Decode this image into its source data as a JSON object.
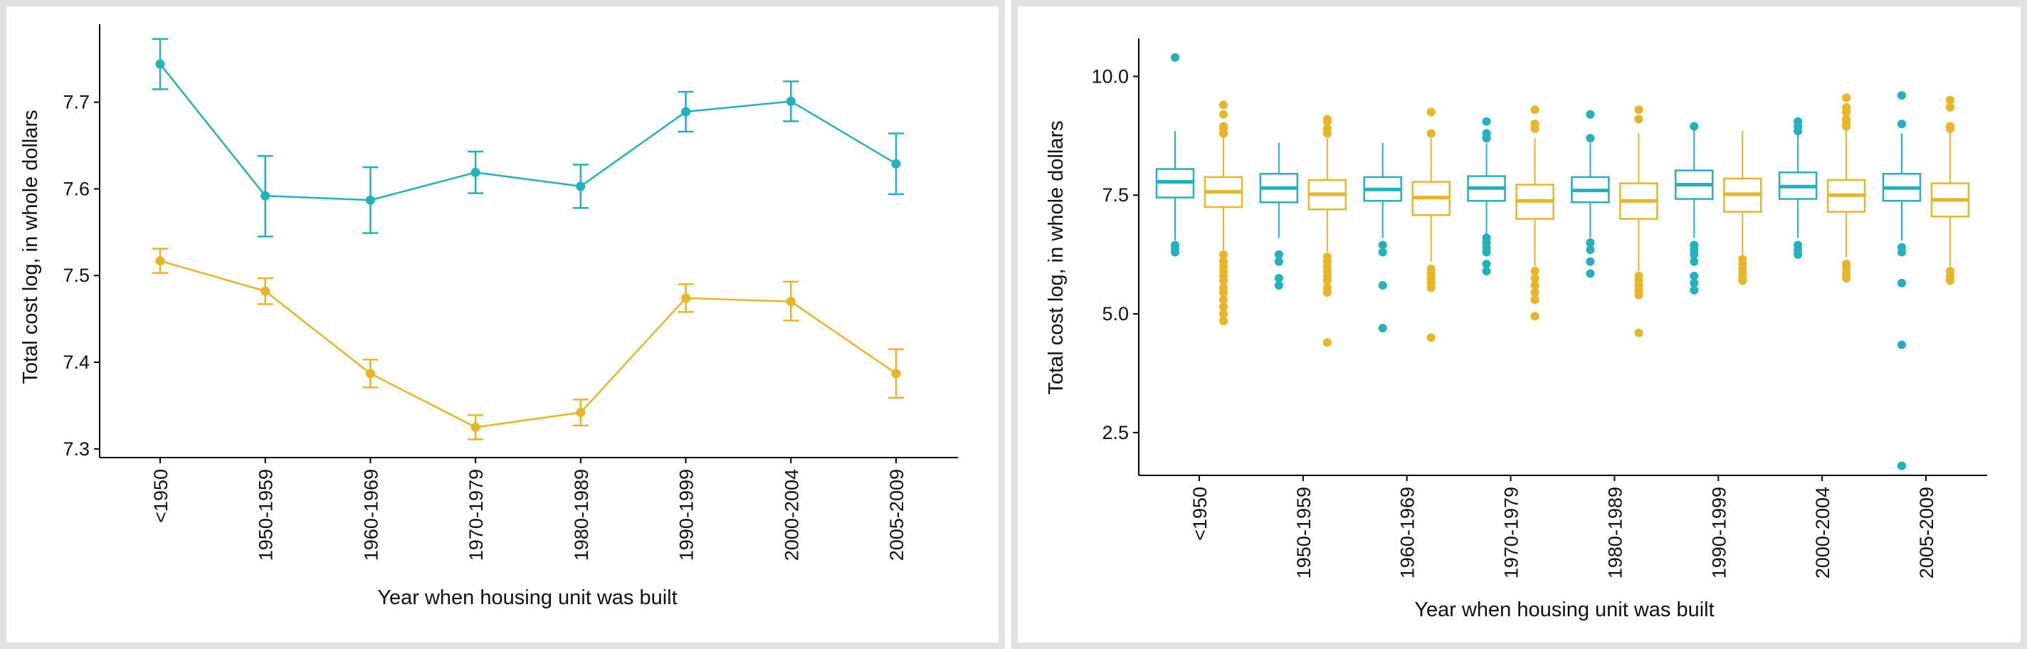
{
  "colors": {
    "teal": "#1fb2c0",
    "gold": "#ebb421",
    "axis": "#000000",
    "border": "#e1e1e1"
  },
  "chart_data": [
    {
      "type": "line",
      "categories": [
        "<1950",
        "1950-1959",
        "1960-1969",
        "1970-1979",
        "1980-1989",
        "1990-1999",
        "2000-2004",
        "2005-2009"
      ],
      "xlabel": "Year when housing unit was built",
      "ylabel": "Total cost log, in whole dollars",
      "ylim": [
        7.29,
        7.79
      ],
      "yticks": [
        7.3,
        7.4,
        7.5,
        7.6,
        7.7
      ],
      "ytick_labels": [
        "7.3",
        "7.4",
        "7.5",
        "7.6",
        "7.7"
      ],
      "error_bars": true,
      "grid": false,
      "legend": "none",
      "series": [
        {
          "color": "#1fb2c0",
          "values": [
            7.744,
            7.592,
            7.587,
            7.619,
            7.603,
            7.689,
            7.701,
            7.629
          ],
          "lower": [
            7.715,
            7.545,
            7.549,
            7.595,
            7.578,
            7.666,
            7.678,
            7.594
          ],
          "upper": [
            7.773,
            7.638,
            7.625,
            7.643,
            7.628,
            7.712,
            7.724,
            7.664
          ]
        },
        {
          "color": "#ebb421",
          "values": [
            7.517,
            7.482,
            7.387,
            7.325,
            7.342,
            7.474,
            7.47,
            7.387
          ],
          "lower": [
            7.503,
            7.467,
            7.371,
            7.311,
            7.327,
            7.458,
            7.448,
            7.359
          ],
          "upper": [
            7.531,
            7.497,
            7.403,
            7.339,
            7.357,
            7.49,
            7.493,
            7.415
          ]
        }
      ]
    },
    {
      "type": "box",
      "categories": [
        "<1950",
        "1950-1959",
        "1960-1969",
        "1970-1979",
        "1980-1989",
        "1990-1999",
        "2000-2004",
        "2005-2009"
      ],
      "xlabel": "Year when housing unit was built",
      "ylabel": "Total cost log, in whole dollars",
      "ylim": [
        1.6,
        10.8
      ],
      "yticks": [
        2.5,
        5.0,
        7.5,
        10.0
      ],
      "ytick_labels": [
        "2.5",
        "5.0",
        "7.5",
        "10.0"
      ],
      "grid": false,
      "legend": "none",
      "series": [
        {
          "color": "#1fb2c0",
          "boxes": [
            {
              "q1": 7.45,
              "median": 7.78,
              "q3": 8.05,
              "lower": 6.55,
              "upper": 8.85,
              "outliers": [
                10.4,
                6.45,
                6.38,
                6.3
              ]
            },
            {
              "q1": 7.35,
              "median": 7.65,
              "q3": 7.95,
              "lower": 6.6,
              "upper": 8.6,
              "outliers": [
                6.25,
                6.1,
                5.75,
                5.6
              ]
            },
            {
              "q1": 7.38,
              "median": 7.62,
              "q3": 7.88,
              "lower": 6.6,
              "upper": 8.6,
              "outliers": [
                6.45,
                6.3,
                5.6,
                4.7
              ]
            },
            {
              "q1": 7.38,
              "median": 7.65,
              "q3": 7.9,
              "lower": 6.6,
              "upper": 8.6,
              "outliers": [
                9.05,
                8.8,
                8.7,
                6.6,
                6.5,
                6.4,
                6.3,
                6.05,
                5.9
              ]
            },
            {
              "q1": 7.35,
              "median": 7.6,
              "q3": 7.88,
              "lower": 6.6,
              "upper": 8.6,
              "outliers": [
                9.2,
                8.7,
                6.5,
                6.35,
                6.1,
                5.85
              ]
            },
            {
              "q1": 7.42,
              "median": 7.72,
              "q3": 8.02,
              "lower": 6.6,
              "upper": 8.9,
              "outliers": [
                8.95,
                6.45,
                6.35,
                6.25,
                6.1,
                5.8,
                5.65,
                5.5
              ]
            },
            {
              "q1": 7.42,
              "median": 7.68,
              "q3": 7.98,
              "lower": 6.6,
              "upper": 8.8,
              "outliers": [
                9.05,
                8.95,
                8.85,
                6.45,
                6.35,
                6.25
              ]
            },
            {
              "q1": 7.38,
              "median": 7.65,
              "q3": 7.95,
              "lower": 6.55,
              "upper": 8.8,
              "outliers": [
                9.6,
                9.0,
                6.4,
                6.3,
                5.65,
                4.35,
                1.8
              ]
            }
          ]
        },
        {
          "color": "#ebb421",
          "boxes": [
            {
              "q1": 7.25,
              "median": 7.57,
              "q3": 7.88,
              "lower": 6.35,
              "upper": 8.85,
              "outliers": [
                9.4,
                9.2,
                8.95,
                8.9,
                8.8,
                6.25,
                6.1,
                6.0,
                5.9,
                5.8,
                5.7,
                5.55,
                5.45,
                5.3,
                5.15,
                5.0,
                4.85
              ]
            },
            {
              "q1": 7.2,
              "median": 7.52,
              "q3": 7.82,
              "lower": 6.3,
              "upper": 8.7,
              "outliers": [
                9.1,
                9.05,
                8.9,
                8.8,
                6.2,
                6.1,
                6.0,
                5.9,
                5.8,
                5.7,
                5.55,
                5.45,
                4.4
              ]
            },
            {
              "q1": 7.08,
              "median": 7.45,
              "q3": 7.78,
              "lower": 6.1,
              "upper": 8.7,
              "outliers": [
                9.25,
                8.8,
                5.95,
                5.85,
                5.75,
                5.65,
                5.55,
                4.5
              ]
            },
            {
              "q1": 7.0,
              "median": 7.38,
              "q3": 7.72,
              "lower": 6.0,
              "upper": 8.7,
              "outliers": [
                9.3,
                9.0,
                8.9,
                5.9,
                5.75,
                5.6,
                5.45,
                5.3,
                4.95
              ]
            },
            {
              "q1": 7.0,
              "median": 7.38,
              "q3": 7.75,
              "lower": 5.9,
              "upper": 8.8,
              "outliers": [
                9.3,
                9.1,
                5.8,
                5.7,
                5.6,
                5.5,
                5.4,
                4.6
              ]
            },
            {
              "q1": 7.15,
              "median": 7.52,
              "q3": 7.85,
              "lower": 6.2,
              "upper": 8.85,
              "outliers": [
                6.15,
                6.05,
                5.95,
                5.85,
                5.75,
                5.7
              ]
            },
            {
              "q1": 7.15,
              "median": 7.5,
              "q3": 7.82,
              "lower": 6.2,
              "upper": 8.9,
              "outliers": [
                9.55,
                9.35,
                9.25,
                9.1,
                9.0,
                8.95,
                6.05,
                5.95,
                5.85,
                5.75
              ]
            },
            {
              "q1": 7.05,
              "median": 7.4,
              "q3": 7.75,
              "lower": 6.0,
              "upper": 8.85,
              "outliers": [
                9.5,
                9.35,
                8.95,
                8.9,
                5.9,
                5.8,
                5.7
              ]
            }
          ]
        }
      ]
    }
  ]
}
